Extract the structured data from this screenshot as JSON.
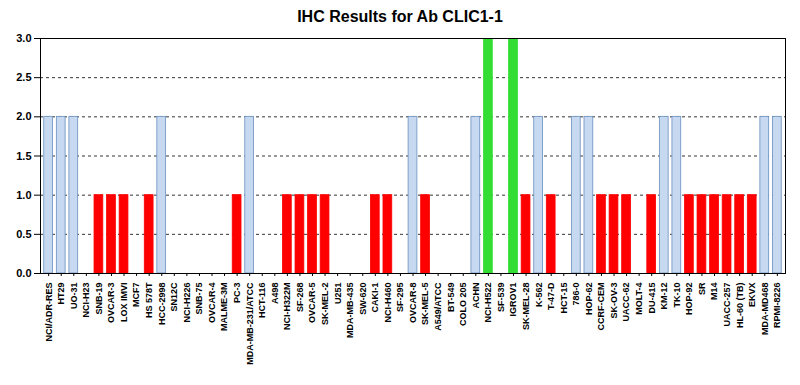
{
  "chart_data": {
    "type": "bar",
    "title": "IHC Results for Ab CLIC1-1",
    "categories": [
      "NCI/ADR-RES",
      "HT29",
      "UO-31",
      "NCI-H23",
      "SNB-19",
      "OVCAR-3",
      "LOX IMVI",
      "MCF7",
      "HS 578T",
      "HCC-2998",
      "SN12C",
      "NCI-H226",
      "SNB-75",
      "OVCAR-4",
      "MALME-3M",
      "PC-3",
      "MDA-MB-231/ATCC",
      "HCT-116",
      "A498",
      "NCI-H322M",
      "SF-268",
      "OVCAR-5",
      "SK-MEL-2",
      "U251",
      "MDA-MB-435",
      "SW-620",
      "CAKI-1",
      "NCI-H460",
      "SF-295",
      "OVCAR-8",
      "SK-MEL-5",
      "A549/ATCC",
      "BT-549",
      "COLO 205",
      "ACHN",
      "NCI-H522",
      "SF-539",
      "IGROV1",
      "SK-MEL-28",
      "K-562",
      "T-47-D",
      "HCT-15",
      "786-0",
      "HOP-62",
      "CCRF-CEM",
      "SK-OV-3",
      "UACC-62",
      "MOLT-4",
      "DU-415",
      "KM-12",
      "TK-10",
      "HOP-92",
      "SR",
      "M14",
      "UACC-257",
      "HL-60 (TB)",
      "EKVX",
      "MDA-MD468",
      "RPMI-8226"
    ],
    "values": [
      2,
      2,
      2,
      0,
      1,
      1,
      1,
      0,
      1,
      2,
      0,
      0,
      0,
      0,
      0,
      1,
      2,
      0,
      0,
      1,
      1,
      1,
      1,
      0,
      0,
      0,
      1,
      1,
      0,
      2,
      1,
      0,
      0,
      0,
      2,
      3,
      0,
      3,
      1,
      2,
      1,
      0,
      2,
      2,
      1,
      1,
      1,
      0,
      1,
      2,
      2,
      1,
      1,
      1,
      1,
      1,
      1,
      2,
      2
    ],
    "colors": [
      "#c6d9f0",
      "#c6d9f0",
      "#c6d9f0",
      "#ff0000",
      "#ff0000",
      "#ff0000",
      "#ff0000",
      "#ff0000",
      "#ff0000",
      "#c6d9f0",
      "#ff0000",
      "#ff0000",
      "#ff0000",
      "#ff0000",
      "#ff0000",
      "#ff0000",
      "#c6d9f0",
      "#ff0000",
      "#ff0000",
      "#ff0000",
      "#ff0000",
      "#ff0000",
      "#ff0000",
      "#ff0000",
      "#ff0000",
      "#ff0000",
      "#ff0000",
      "#ff0000",
      "#ff0000",
      "#c6d9f0",
      "#ff0000",
      "#ff0000",
      "#ff0000",
      "#ff0000",
      "#c6d9f0",
      "#33dd33",
      "#ff0000",
      "#33dd33",
      "#ff0000",
      "#c6d9f0",
      "#ff0000",
      "#ff0000",
      "#c6d9f0",
      "#c6d9f0",
      "#ff0000",
      "#ff0000",
      "#ff0000",
      "#ff0000",
      "#ff0000",
      "#c6d9f0",
      "#c6d9f0",
      "#ff0000",
      "#ff0000",
      "#ff0000",
      "#ff0000",
      "#ff0000",
      "#ff0000",
      "#c6d9f0",
      "#c6d9f0"
    ],
    "ylim": [
      0,
      3
    ],
    "yticks": [
      {
        "value": 0,
        "label": "0.0"
      },
      {
        "value": 0.5,
        "label": "0.5"
      },
      {
        "value": 1,
        "label": "1.0"
      },
      {
        "value": 1.5,
        "label": "1.5"
      },
      {
        "value": 2,
        "label": "2.0"
      },
      {
        "value": 2.5,
        "label": "2.5"
      },
      {
        "value": 3,
        "label": "3.0"
      }
    ],
    "grid": true
  }
}
